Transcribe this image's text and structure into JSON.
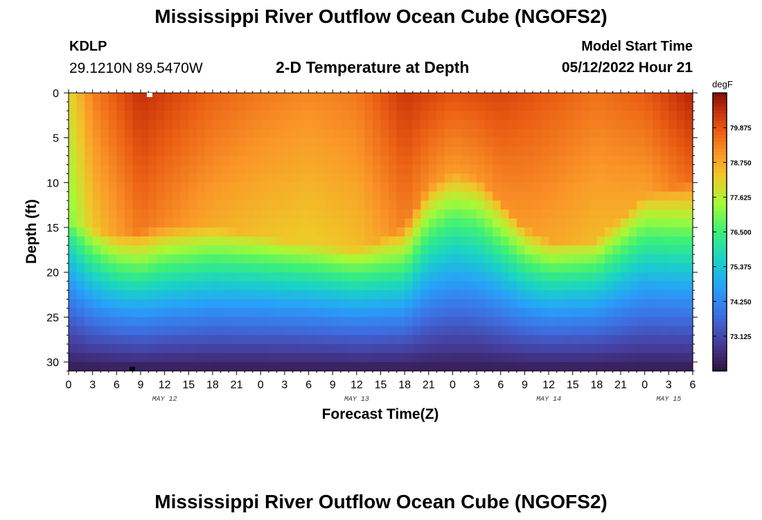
{
  "header": {
    "title": "Mississippi River Outflow Ocean Cube (NGOFS2)",
    "station_id": "KDLP",
    "station_coords": "29.1210N  89.5470W",
    "plot_title": "2-D Temperature at Depth",
    "model_start_label": "Model Start Time",
    "model_start_value": "05/12/2022 Hour 21"
  },
  "footer": {
    "title": "Mississippi River Outflow Ocean Cube (NGOFS2)"
  },
  "chart_data": {
    "type": "heatmap",
    "title": "2-D Temperature at Depth",
    "xlabel": "Forecast Time(Z)",
    "ylabel": "Depth (ft)",
    "x_hours_range": [
      0,
      78
    ],
    "x_tick_labels": [
      "0",
      "3",
      "6",
      "9",
      "12",
      "15",
      "18",
      "21",
      "0",
      "3",
      "6",
      "9",
      "12",
      "15",
      "18",
      "21",
      "0",
      "3",
      "6",
      "9",
      "12",
      "15",
      "18",
      "21",
      "0",
      "3",
      "6"
    ],
    "date_labels": [
      {
        "label": "MAY 12",
        "hour": 12
      },
      {
        "label": "MAY 13",
        "hour": 36
      },
      {
        "label": "MAY 14",
        "hour": 60
      },
      {
        "label": "MAY 15",
        "hour": 75
      }
    ],
    "ylim": [
      0,
      31
    ],
    "y_ticks": [
      0,
      5,
      10,
      15,
      20,
      25,
      30
    ],
    "colorbar": {
      "unit": "degF",
      "range": [
        72.0,
        81.0
      ],
      "ticks": [
        "79.875",
        "78.750",
        "77.625",
        "76.500",
        "75.375",
        "74.250",
        "73.125"
      ],
      "tick_values": [
        79.875,
        78.75,
        77.625,
        76.5,
        75.375,
        74.25,
        73.125
      ]
    },
    "grid": false,
    "thermocline_depth_by_hour": [
      {
        "hour": 0,
        "depth": 16.5
      },
      {
        "hour": 6,
        "depth": 18
      },
      {
        "hour": 12,
        "depth": 17
      },
      {
        "hour": 18,
        "depth": 17
      },
      {
        "hour": 24,
        "depth": 18
      },
      {
        "hour": 30,
        "depth": 19
      },
      {
        "hour": 36,
        "depth": 19.5
      },
      {
        "hour": 42,
        "depth": 17
      },
      {
        "hour": 45,
        "depth": 12.5
      },
      {
        "hour": 48,
        "depth": 11
      },
      {
        "hour": 51,
        "depth": 11.5
      },
      {
        "hour": 54,
        "depth": 14
      },
      {
        "hour": 57,
        "depth": 17
      },
      {
        "hour": 60,
        "depth": 18.5
      },
      {
        "hour": 66,
        "depth": 18.5
      },
      {
        "hour": 72,
        "depth": 13.5
      },
      {
        "hour": 78,
        "depth": 12
      }
    ],
    "surface_temp_by_hour": [
      {
        "hour": 0,
        "value": 78.0
      },
      {
        "hour": 3,
        "value": 79.3
      },
      {
        "hour": 9,
        "value": 80.4
      },
      {
        "hour": 18,
        "value": 79.7
      },
      {
        "hour": 24,
        "value": 79.4
      },
      {
        "hour": 30,
        "value": 79.2
      },
      {
        "hour": 36,
        "value": 79.4
      },
      {
        "hour": 42,
        "value": 80.3
      },
      {
        "hour": 48,
        "value": 79.9
      },
      {
        "hour": 54,
        "value": 80.1
      },
      {
        "hour": 60,
        "value": 79.8
      },
      {
        "hour": 66,
        "value": 79.5
      },
      {
        "hour": 72,
        "value": 79.8
      },
      {
        "hour": 78,
        "value": 80.6
      }
    ],
    "bottom_temp": 72.2
  }
}
